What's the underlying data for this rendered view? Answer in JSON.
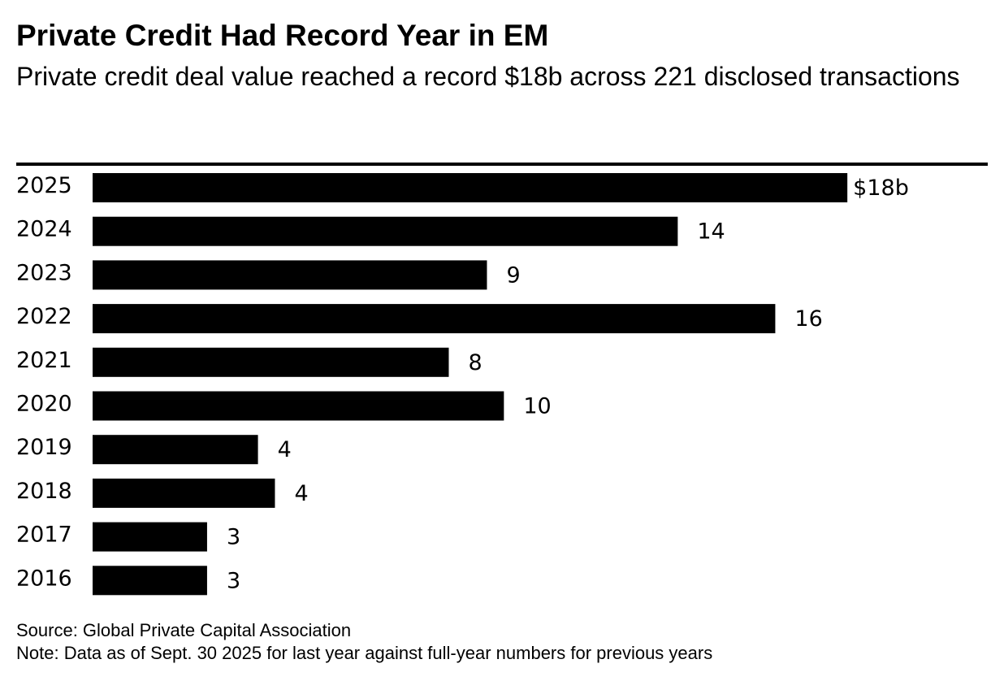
{
  "colors": {
    "bar": "#000000",
    "text": "#000000",
    "background": "#ffffff"
  },
  "chart_data": {
    "type": "bar",
    "orientation": "horizontal",
    "title": "Private Credit Had Record Year in EM",
    "subtitle": "Private credit deal value reached a record $18b across 221 disclosed transactions",
    "categories": [
      "2025",
      "2024",
      "2023",
      "2022",
      "2021",
      "2020",
      "2019",
      "2018",
      "2017",
      "2016"
    ],
    "values": [
      17.8,
      13.8,
      9.3,
      16.1,
      8.4,
      9.7,
      3.9,
      4.3,
      2.7,
      2.7
    ],
    "value_labels": [
      "$18b",
      "14",
      "9",
      "16",
      "8",
      "10",
      "4",
      "4",
      "3",
      "3"
    ],
    "unit": "$b",
    "xlim": [
      0,
      18
    ],
    "xlabel": "",
    "ylabel": "",
    "grid": false
  },
  "footer": {
    "source": "Source: Global Private Capital Association",
    "note": "Note: Data as of Sept. 30 2025 for last year against full-year numbers for previous years"
  }
}
